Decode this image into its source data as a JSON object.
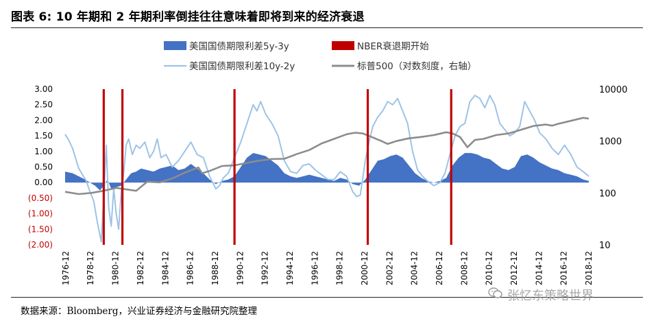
{
  "figure": {
    "title": "图表 6:    10 年期和 2 年期利率倒挂往往意味着即将到来的经济衰退",
    "source": "数据来源：Bloomberg，兴业证券经济与金融研究院整理",
    "watermark": "张忆东策略世界"
  },
  "chart_data": {
    "type": "line",
    "title": "10 年期和 2 年期利率倒挂往往意味着即将到来的经济衰退",
    "legend": {
      "placement": "top",
      "entries": [
        {
          "key": "spread5y3y",
          "label": "美国国债期限利差5y-3y",
          "style": "area",
          "color": "#4472c4"
        },
        {
          "key": "recession",
          "label": "NBER衰退期开始",
          "style": "bar",
          "color": "#c00000"
        },
        {
          "key": "spread10y2y",
          "label": "美国国债期限利差10y-2y",
          "style": "line",
          "color": "#9dc3e6"
        },
        {
          "key": "sp500",
          "label": "标普500（对数刻度，右轴）",
          "style": "line",
          "color": "#8c8c8c"
        }
      ]
    },
    "x_range": [
      1976.9,
      2018.95
    ],
    "x_tick_labels": [
      "1976-12",
      "1978-12",
      "1980-12",
      "1982-12",
      "1984-12",
      "1986-12",
      "1988-12",
      "1990-12",
      "1992-12",
      "1994-12",
      "1996-12",
      "1998-12",
      "2000-12",
      "2002-12",
      "2004-12",
      "2006-12",
      "2008-12",
      "2010-12",
      "2012-12",
      "2014-12",
      "2016-12",
      "2018-12"
    ],
    "y_left": {
      "range": [
        -2.0,
        3.0
      ],
      "tick_labels": [
        "3.00",
        "2.50",
        "2.00",
        "1.50",
        "1.00",
        "0.50",
        "0.00",
        "(0.50)",
        "(1.00)",
        "(1.50)",
        "(2.00)"
      ],
      "tick_values": [
        3.0,
        2.5,
        2.0,
        1.5,
        1.0,
        0.5,
        0.0,
        -0.5,
        -1.0,
        -1.5,
        -2.0
      ]
    },
    "y_right": {
      "scale": "log",
      "range": [
        10,
        10000
      ],
      "tick_labels": [
        "10000",
        "1000",
        "100",
        "10"
      ],
      "tick_values": [
        10000,
        1000,
        100,
        10
      ]
    },
    "recession_starts": [
      1980.0,
      1981.5,
      1990.5,
      2001.2,
      2007.9
    ],
    "series": [
      {
        "name": "美国国债期限利差10y-2y",
        "x": [
          1976.9,
          1977.2,
          1977.5,
          1977.8,
          1978.0,
          1978.3,
          1978.6,
          1978.9,
          1979.2,
          1979.5,
          1979.8,
          1980.0,
          1980.2,
          1980.4,
          1980.6,
          1980.8,
          1981.0,
          1981.2,
          1981.4,
          1981.6,
          1981.8,
          1982.0,
          1982.3,
          1982.6,
          1982.9,
          1983.3,
          1983.7,
          1984.0,
          1984.3,
          1984.6,
          1985.0,
          1985.5,
          1986.0,
          1986.5,
          1987.0,
          1987.5,
          1988.0,
          1988.5,
          1989.0,
          1989.3,
          1989.6,
          1990.0,
          1990.5,
          1991.0,
          1991.5,
          1992.0,
          1992.3,
          1992.6,
          1993.0,
          1993.5,
          1994.0,
          1994.5,
          1995.0,
          1995.5,
          1996.0,
          1996.5,
          1997.0,
          1997.5,
          1998.0,
          1998.5,
          1999.0,
          1999.5,
          2000.0,
          2000.3,
          2000.6,
          2001.0,
          2001.3,
          2001.6,
          2002.0,
          2002.4,
          2002.8,
          2003.2,
          2003.6,
          2004.0,
          2004.4,
          2004.8,
          2005.2,
          2005.6,
          2006.0,
          2006.5,
          2007.0,
          2007.4,
          2007.8,
          2008.2,
          2008.6,
          2009.0,
          2009.4,
          2009.8,
          2010.2,
          2010.6,
          2011.0,
          2011.4,
          2011.8,
          2012.2,
          2012.6,
          2013.0,
          2013.4,
          2013.8,
          2014.2,
          2014.6,
          2015.0,
          2015.5,
          2016.0,
          2016.5,
          2017.0,
          2017.5,
          2018.0,
          2018.5,
          2018.95
        ],
        "values": [
          1.55,
          1.35,
          1.1,
          0.7,
          0.45,
          0.25,
          0.05,
          -0.3,
          -0.6,
          -1.3,
          -1.9,
          -0.5,
          1.2,
          -0.8,
          -1.4,
          -0.2,
          -1.0,
          -1.5,
          -0.3,
          0.3,
          1.2,
          1.4,
          0.9,
          1.2,
          1.1,
          1.3,
          0.8,
          1.0,
          1.4,
          0.8,
          0.9,
          0.5,
          0.7,
          1.0,
          1.3,
          0.9,
          0.8,
          0.2,
          -0.2,
          -0.1,
          0.15,
          0.3,
          0.8,
          1.3,
          1.9,
          2.5,
          2.3,
          2.6,
          2.2,
          1.9,
          1.5,
          0.7,
          0.35,
          0.3,
          0.55,
          0.6,
          0.4,
          0.25,
          0.1,
          0.1,
          0.35,
          0.2,
          -0.3,
          -0.45,
          -0.4,
          0.7,
          1.3,
          1.8,
          2.1,
          2.3,
          2.6,
          2.5,
          2.7,
          2.3,
          1.9,
          1.0,
          0.4,
          0.2,
          0.05,
          -0.1,
          0.0,
          0.3,
          0.9,
          1.5,
          1.8,
          1.9,
          2.6,
          2.8,
          2.7,
          2.4,
          2.8,
          2.5,
          1.9,
          1.7,
          1.5,
          1.6,
          1.8,
          2.6,
          2.3,
          2.0,
          1.6,
          1.4,
          1.1,
          0.9,
          1.2,
          0.9,
          0.5,
          0.35,
          0.2
        ]
      },
      {
        "name": "美国国债期限利差5y-3y",
        "x": [
          1976.9,
          1977.5,
          1978.0,
          1978.5,
          1978.9,
          1979.3,
          1979.7,
          1980.0,
          1980.3,
          1980.6,
          1981.0,
          1981.4,
          1981.8,
          1982.2,
          1982.6,
          1983.0,
          1983.5,
          1984.0,
          1984.5,
          1985.0,
          1985.5,
          1986.0,
          1986.5,
          1987.0,
          1987.5,
          1988.0,
          1988.5,
          1989.0,
          1989.5,
          1990.0,
          1990.5,
          1991.0,
          1991.5,
          1992.0,
          1992.5,
          1993.0,
          1993.5,
          1994.0,
          1994.5,
          1995.0,
          1995.5,
          1996.0,
          1996.5,
          1997.0,
          1997.5,
          1998.0,
          1998.5,
          1999.0,
          1999.5,
          2000.0,
          2000.5,
          2001.0,
          2001.5,
          2002.0,
          2002.5,
          2003.0,
          2003.5,
          2004.0,
          2004.5,
          2005.0,
          2005.5,
          2006.0,
          2006.5,
          2007.0,
          2007.5,
          2008.0,
          2008.5,
          2009.0,
          2009.5,
          2010.0,
          2010.5,
          2011.0,
          2011.5,
          2012.0,
          2012.5,
          2013.0,
          2013.5,
          2014.0,
          2014.5,
          2015.0,
          2015.5,
          2016.0,
          2016.5,
          2017.0,
          2017.5,
          2018.0,
          2018.5,
          2018.95
        ],
        "values": [
          0.35,
          0.3,
          0.2,
          0.1,
          0.0,
          -0.1,
          -0.25,
          -0.1,
          0.1,
          -0.2,
          -0.15,
          -0.1,
          0.1,
          0.3,
          0.35,
          0.45,
          0.4,
          0.35,
          0.45,
          0.5,
          0.55,
          0.4,
          0.45,
          0.6,
          0.45,
          0.3,
          0.1,
          -0.05,
          0.05,
          0.1,
          0.2,
          0.5,
          0.8,
          0.95,
          0.9,
          0.85,
          0.7,
          0.55,
          0.3,
          0.2,
          0.15,
          0.2,
          0.25,
          0.2,
          0.15,
          0.1,
          0.05,
          0.15,
          0.1,
          -0.05,
          -0.1,
          0.1,
          0.4,
          0.7,
          0.75,
          0.85,
          0.9,
          0.8,
          0.55,
          0.3,
          0.15,
          0.05,
          0.0,
          0.05,
          0.15,
          0.55,
          0.8,
          0.95,
          0.95,
          0.9,
          0.8,
          0.75,
          0.6,
          0.45,
          0.4,
          0.5,
          0.85,
          0.9,
          0.8,
          0.65,
          0.55,
          0.45,
          0.4,
          0.3,
          0.25,
          0.2,
          0.1,
          0.05
        ]
      },
      {
        "name": "标普500（对数刻度，右轴）",
        "axis": "right",
        "x": [
          1976.9,
          1978.0,
          1979.0,
          1980.0,
          1981.0,
          1982.0,
          1982.6,
          1983.5,
          1984.5,
          1985.5,
          1986.5,
          1987.6,
          1987.9,
          1988.5,
          1989.5,
          1990.5,
          1991.5,
          1992.5,
          1993.5,
          1994.5,
          1995.5,
          1996.5,
          1997.5,
          1998.5,
          1999.5,
          2000.2,
          2000.8,
          2001.5,
          2002.3,
          2002.8,
          2003.5,
          2004.5,
          2005.5,
          2006.5,
          2007.5,
          2008.0,
          2008.6,
          2009.2,
          2009.8,
          2010.5,
          2011.5,
          2012.5,
          2013.5,
          2014.5,
          2015.5,
          2016.0,
          2016.5,
          2017.5,
          2018.5,
          2018.95
        ],
        "values": [
          105,
          95,
          100,
          110,
          125,
          115,
          110,
          165,
          160,
          190,
          245,
          310,
          240,
          265,
          330,
          340,
          380,
          420,
          450,
          455,
          560,
          670,
          900,
          1100,
          1350,
          1450,
          1400,
          1200,
          1000,
          880,
          1000,
          1130,
          1200,
          1300,
          1480,
          1400,
          1200,
          760,
          1050,
          1100,
          1300,
          1400,
          1650,
          1950,
          2080,
          1980,
          2150,
          2450,
          2800,
          2700
        ]
      }
    ]
  }
}
